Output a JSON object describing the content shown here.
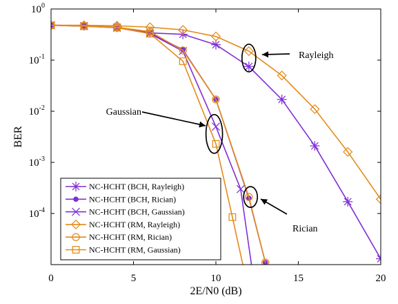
{
  "chart_data": {
    "type": "line",
    "title": "",
    "xlabel": "2E/N0 (dB)",
    "ylabel": "BER",
    "xlim": [
      0,
      20
    ],
    "ylim": [
      1e-05,
      1
    ],
    "yscale": "log",
    "grid": false,
    "legend_position": "bottom-left",
    "x_ticks": [
      0,
      5,
      10,
      15,
      20
    ],
    "x_tick_labels": [
      "0",
      "5",
      "10",
      "15",
      "20"
    ],
    "y_ticks": [
      1,
      0.1,
      0.01,
      0.001,
      0.0001
    ],
    "y_tick_labels": [
      {
        "base": "10",
        "exp": "0"
      },
      {
        "base": "10",
        "exp": "-1"
      },
      {
        "base": "10",
        "exp": "-2"
      },
      {
        "base": "10",
        "exp": "-3"
      },
      {
        "base": "10",
        "exp": "-4"
      }
    ],
    "series": [
      {
        "name": "NC-HCHT (BCH, Rayleigh)",
        "color": "#7E2FD6",
        "marker": "asterisk",
        "x": [
          0,
          2,
          4,
          6,
          8,
          10,
          12,
          14,
          16,
          18,
          20
        ],
        "y": [
          0.48,
          0.47,
          0.44,
          0.34,
          0.32,
          0.2,
          0.075,
          0.017,
          0.0021,
          0.00017,
          1.3e-05
        ]
      },
      {
        "name": "NC-HCHT (BCH, Rician)",
        "color": "#7E2FD6",
        "marker": "dot",
        "x": [
          0,
          2,
          4,
          6,
          8,
          10,
          12,
          13
        ],
        "y": [
          0.48,
          0.47,
          0.43,
          0.34,
          0.16,
          0.017,
          0.0002,
          1.1e-05
        ]
      },
      {
        "name": "NC-HCHT (BCH, Gaussian)",
        "color": "#7E2FD6",
        "marker": "x",
        "x": [
          0,
          2,
          4,
          6,
          8,
          10,
          11.5,
          12.2
        ],
        "y": [
          0.48,
          0.46,
          0.43,
          0.33,
          0.15,
          0.005,
          0.0003,
          8e-06
        ]
      },
      {
        "name": "NC-HCHT (RM, Rayleigh)",
        "color": "#E38A19",
        "marker": "diamond",
        "x": [
          0,
          2,
          4,
          6,
          8,
          10,
          12,
          14,
          16,
          18,
          20
        ],
        "y": [
          0.48,
          0.48,
          0.47,
          0.44,
          0.39,
          0.29,
          0.15,
          0.05,
          0.011,
          0.0016,
          0.00019
        ]
      },
      {
        "name": "NC-HCHT (RM, Rician)",
        "color": "#E38A19",
        "marker": "circle",
        "x": [
          0,
          2,
          4,
          6,
          8,
          10,
          12,
          13
        ],
        "y": [
          0.48,
          0.47,
          0.44,
          0.36,
          0.155,
          0.017,
          0.00021,
          1.1e-05
        ]
      },
      {
        "name": "NC-HCHT (RM, Gaussian)",
        "color": "#E38A19",
        "marker": "square",
        "x": [
          0,
          2,
          4,
          6,
          8,
          10,
          11,
          11.7
        ],
        "y": [
          0.48,
          0.46,
          0.43,
          0.33,
          0.095,
          0.0023,
          8.5e-05,
          8e-06
        ]
      }
    ],
    "annotations": [
      {
        "text": "Rayleigh",
        "x": 12.0,
        "y": 0.11
      },
      {
        "text": "Gaussian",
        "x": 9.9,
        "y": 0.0036
      },
      {
        "text": "Rician",
        "x": 12.1,
        "y": 0.00021
      }
    ]
  }
}
